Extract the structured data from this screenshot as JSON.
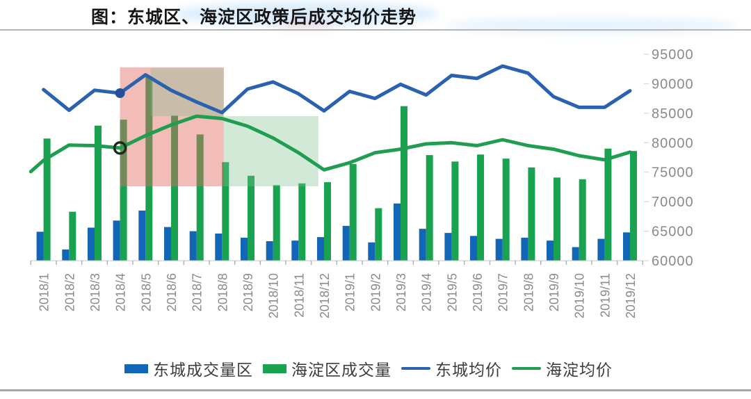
{
  "header": {
    "title": "图：东城区、海淀区政策后成交均价走势"
  },
  "chart_data": {
    "type": "combo-bar-line",
    "title": "图：东城区、海淀区政策后成交均价走势",
    "grid": false,
    "plot_background": "#ffffff",
    "y_axis": {
      "side": "right",
      "min": 60000,
      "max": 95000,
      "step": 5000,
      "tick_labels": [
        "95000",
        "90000",
        "85000",
        "80000",
        "75000",
        "70000",
        "65000",
        "60000"
      ]
    },
    "x_axis": {
      "label_rotation": -90,
      "tick_color": "#b3b3b3"
    },
    "categories": [
      "2018/1",
      "2018/2",
      "2018/3",
      "2018/4",
      "2018/5",
      "2018/6",
      "2018/7",
      "2018/8",
      "2018/9",
      "2018/10",
      "2018/11",
      "2018/12",
      "2019/1",
      "2019/2",
      "2019/3",
      "2019/4",
      "2019/5",
      "2019/6",
      "2019/7",
      "2019/8",
      "2019/9",
      "2019/10",
      "2019/11",
      "2019/12"
    ],
    "series": [
      {
        "name": "东城成交量区",
        "type": "bar",
        "color": "#1266b7",
        "values": [
          64900,
          61900,
          65600,
          66800,
          68500,
          65700,
          65000,
          64600,
          63900,
          63300,
          63400,
          64000,
          65900,
          63100,
          69700,
          65400,
          64700,
          64200,
          63700,
          63900,
          63400,
          62300,
          63700,
          64800
        ]
      },
      {
        "name": "海淀区成交量",
        "type": "bar",
        "color": "#19a351",
        "values": [
          80700,
          68300,
          82900,
          83900,
          91200,
          84600,
          81400,
          76700,
          74400,
          72800,
          73100,
          73300,
          76400,
          68900,
          86200,
          77900,
          76800,
          78000,
          77300,
          75800,
          74100,
          73800,
          79000,
          78600
        ]
      },
      {
        "name": "东城均价",
        "type": "line",
        "color": "#2b62b0",
        "values": [
          89000,
          85500,
          88900,
          88400,
          91500,
          88900,
          86900,
          85100,
          89100,
          90300,
          88300,
          85400,
          88700,
          87500,
          89900,
          88100,
          91400,
          90900,
          93000,
          91800,
          87800,
          86000,
          86000,
          88800
        ],
        "markers": [
          {
            "category": "2018/4",
            "index": 3,
            "style": "filled-circle",
            "color": "#264f9b",
            "radius": 7
          }
        ]
      },
      {
        "name": "海淀均价",
        "type": "line",
        "color": "#1f9e51",
        "values": [
          77000,
          79600,
          79500,
          79100,
          81200,
          83000,
          84500,
          84100,
          82800,
          80800,
          78300,
          75400,
          76600,
          78300,
          78900,
          79800,
          80000,
          79500,
          80500,
          79500,
          78900,
          77800,
          77100,
          78400
        ],
        "lead_in": {
          "ci": -0.5,
          "value": 75100
        },
        "markers": [
          {
            "category": "2018/4",
            "index": 3,
            "style": "open-circle",
            "color": "#1c291c",
            "radius": 8
          }
        ]
      }
    ],
    "highlight_regions": [
      {
        "name": "red-policy-box",
        "color": "#e36b61",
        "opacity": 0.45,
        "x_from": "2018/4",
        "x_to": "2018/8",
        "x_from_ci": 3.0,
        "x_to_ci": 7.07,
        "v_top": 92800,
        "v_bottom": 72600
      },
      {
        "name": "green-box-upper",
        "color": "#7fbf8e",
        "opacity": 0.35,
        "x_from": "2018/5",
        "x_to": "2018/8",
        "x_from_ci": 4.2,
        "x_to_ci": 7.07,
        "v_top": 92600,
        "v_bottom": 84500
      },
      {
        "name": "green-box-lower",
        "color": "#7fbf8e",
        "opacity": 0.35,
        "x_from": "2018/8",
        "x_to": "2018/12",
        "x_from_ci": 7.07,
        "x_to_ci": 10.78,
        "v_top": 84500,
        "v_bottom": 72600
      }
    ],
    "legend": {
      "position": "bottom",
      "items": [
        "东城成交量区",
        "海淀区成交量",
        "东城均价",
        "海淀均价"
      ]
    }
  }
}
